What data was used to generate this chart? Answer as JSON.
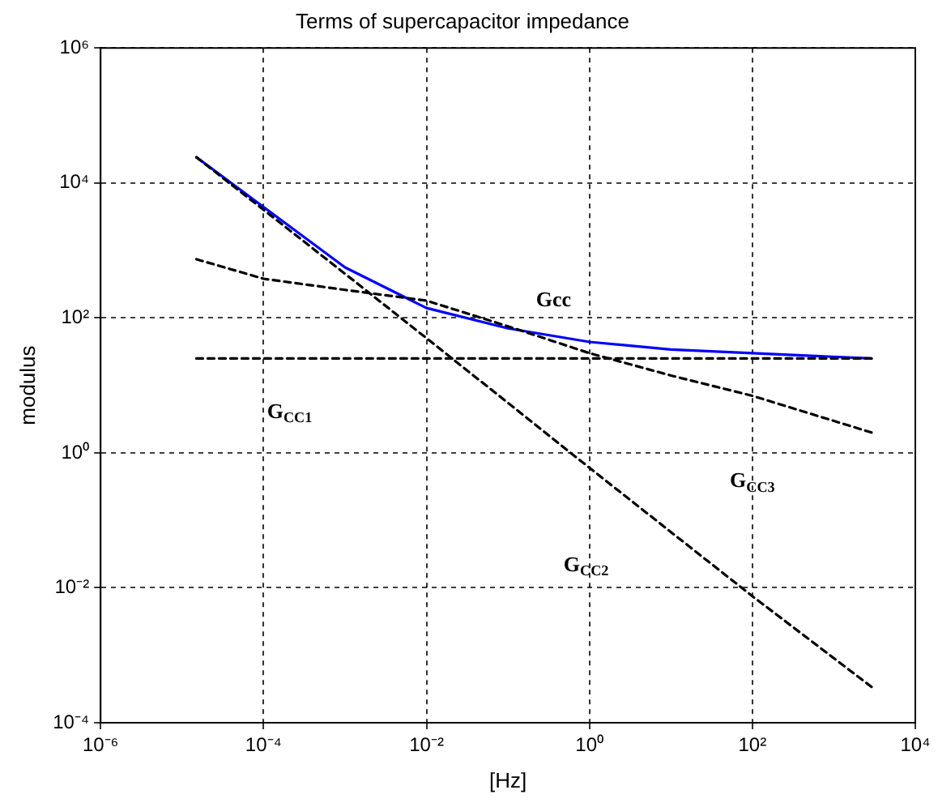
{
  "chart_data": {
    "type": "line",
    "title": "Terms of supercapacitor impedance",
    "xlabel": "[Hz]",
    "ylabel": "modulus",
    "log": "xy",
    "grid": true,
    "legend": false,
    "xlim": [
      1e-06,
      10000.0
    ],
    "ylim": [
      0.0001,
      1000000.0
    ],
    "xticks": [
      {
        "value": 1e-06,
        "label": "10⁻⁶"
      },
      {
        "value": 0.0001,
        "label": "10⁻⁴"
      },
      {
        "value": 0.01,
        "label": "10⁻²"
      },
      {
        "value": 1,
        "label": "10⁰"
      },
      {
        "value": 100,
        "label": "10²"
      },
      {
        "value": 10000,
        "label": "10⁴"
      }
    ],
    "yticks": [
      {
        "value": 0.0001,
        "label": "10⁻⁴"
      },
      {
        "value": 0.01,
        "label": "10⁻²"
      },
      {
        "value": 1,
        "label": "10⁰"
      },
      {
        "value": 100,
        "label": "10²"
      },
      {
        "value": 10000,
        "label": "10⁴"
      },
      {
        "value": 1000000,
        "label": "10⁶"
      }
    ],
    "series": [
      {
        "name": "Gcc",
        "color": "#0000ff",
        "line_style": "solid",
        "x": [
          1.5e-05,
          0.0001,
          0.001,
          0.01,
          0.1,
          1,
          10,
          100,
          2900
        ],
        "values": [
          24000,
          4400,
          560,
          140,
          70,
          44,
          34,
          30,
          25
        ]
      },
      {
        "name": "G$_{CC1}$",
        "color": "#000000",
        "line_style": "dashed",
        "x": [
          1.5e-05,
          2900
        ],
        "values": [
          25,
          25
        ]
      },
      {
        "name": "G$_{CC2}$",
        "color": "#000000",
        "line_style": "dashed",
        "x": [
          1.5e-05,
          0.0001,
          0.001,
          0.01,
          0.1,
          1,
          10,
          100,
          2900
        ],
        "values": [
          24000,
          4000,
          450,
          50,
          5.5,
          0.6,
          0.067,
          0.0075,
          0.00034
        ]
      },
      {
        "name": "G$_{CC3}$",
        "color": "#000000",
        "line_style": "dashed",
        "x": [
          1.5e-05,
          0.0001,
          0.001,
          0.01,
          0.1,
          1,
          10,
          100,
          2900
        ],
        "values": [
          740,
          380,
          260,
          180,
          75,
          30,
          14,
          7,
          2
        ]
      }
    ]
  }
}
